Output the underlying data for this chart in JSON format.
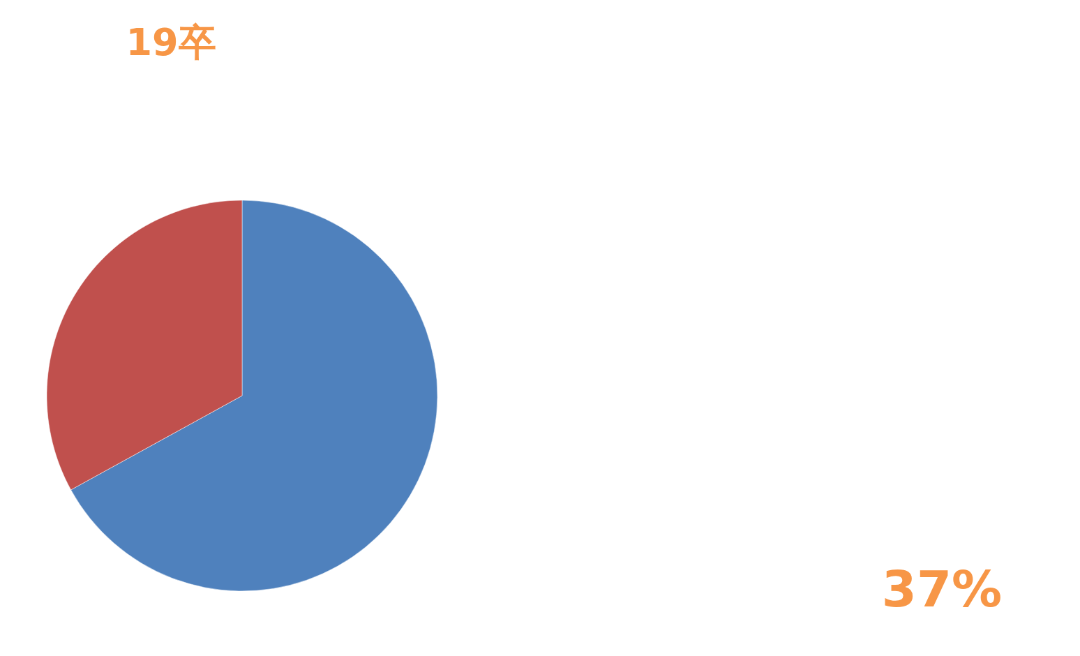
{
  "chart_data": {
    "type": "pie",
    "title": "19卒",
    "categories": [
      null,
      null
    ],
    "values": [
      67,
      33
    ],
    "colors": [
      "#4f81bd",
      "#c0504d"
    ],
    "annotations": [
      "37%"
    ]
  }
}
